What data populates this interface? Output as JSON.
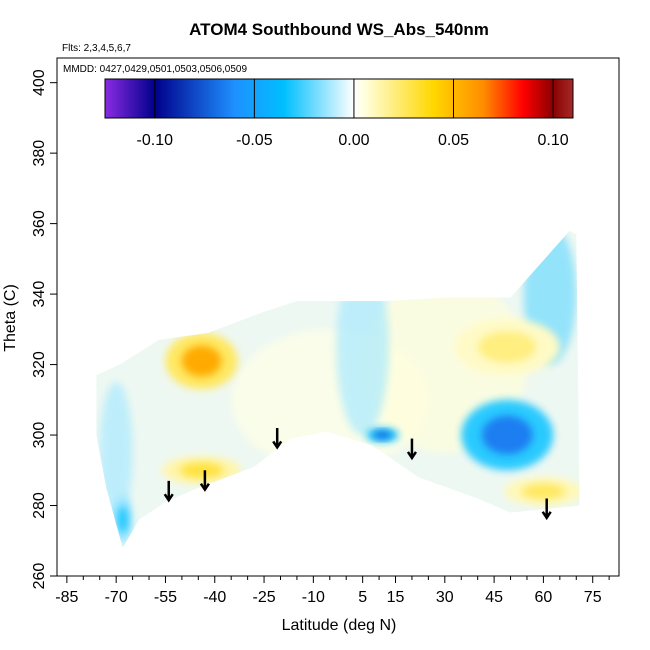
{
  "chart_data": {
    "type": "heatmap",
    "title": "ATOM4 Southbound WS_Abs_540nm",
    "subtitle_flights": "Flts: 2,3,4,5,6,7",
    "subtitle_dates": "MMDD: 0427,0429,0501,0503,0506,0509",
    "xlabel": "Latitude (deg N)",
    "ylabel": "Theta (C)",
    "xlim": [
      -88,
      83
    ],
    "ylim": [
      260,
      407
    ],
    "x_ticks": [
      -85,
      -70,
      -55,
      -40,
      -25,
      -10,
      5,
      15,
      30,
      45,
      60,
      75
    ],
    "x_tick_labels": [
      "-85",
      "-70",
      "-55",
      "-40",
      "-25",
      "-10",
      "5",
      "15",
      "30",
      "45",
      "60",
      "75"
    ],
    "x_minor_ticks": [
      -80,
      -75,
      -65,
      -60,
      -50,
      -45,
      -35,
      -30,
      -20,
      -15,
      -5,
      0,
      10,
      20,
      25,
      35,
      40,
      50,
      55,
      65,
      70,
      80
    ],
    "y_ticks": [
      260,
      280,
      300,
      320,
      340,
      360,
      380,
      400
    ],
    "y_tick_labels": [
      "260",
      "280",
      "300",
      "320",
      "340",
      "360",
      "380",
      "400"
    ],
    "colorbar": {
      "range": [
        -0.125,
        0.11
      ],
      "ticks": [
        -0.1,
        -0.05,
        0.0,
        0.05,
        0.1
      ],
      "tick_labels": [
        "-0.10",
        "-0.05",
        "0.00",
        "0.05",
        "0.10"
      ],
      "colors": [
        "#8a2be2",
        "#00008b",
        "#1e90ff",
        "#00bfff",
        "#ffffff",
        "#ffffe0",
        "#ffd700",
        "#ff8c00",
        "#ff0000",
        "#8b0000",
        "#a52a2a"
      ]
    },
    "domain_outline": [
      [
        -76,
        317
      ],
      [
        -69,
        320
      ],
      [
        -57,
        327
      ],
      [
        -42,
        329
      ],
      [
        -25,
        335
      ],
      [
        -15,
        338
      ],
      [
        -3,
        338
      ],
      [
        12,
        338
      ],
      [
        30,
        339
      ],
      [
        50,
        339
      ],
      [
        68,
        358
      ],
      [
        70,
        357
      ],
      [
        71,
        280
      ],
      [
        50,
        278
      ],
      [
        40,
        282
      ],
      [
        22,
        288
      ],
      [
        8,
        297
      ],
      [
        -6,
        301
      ],
      [
        -17,
        299
      ],
      [
        -28,
        291
      ],
      [
        -45,
        285
      ],
      [
        -55,
        281
      ],
      [
        -63,
        276
      ],
      [
        -68,
        268
      ],
      [
        -73,
        285
      ],
      [
        -76,
        300
      ]
    ],
    "anomalies": [
      {
        "label": "mid-latitude upper positive",
        "lat": -44,
        "theta": 321,
        "value": 0.055,
        "rx": 11,
        "ry": 8
      },
      {
        "label": "mid-latitude lower positive",
        "lat": -44,
        "theta": 290,
        "value": 0.03,
        "rx": 12,
        "ry": 4
      },
      {
        "label": "southern edge negative",
        "lat": -68,
        "theta": 276,
        "value": -0.03,
        "rx": 3,
        "ry": 7
      },
      {
        "label": "equatorial negative",
        "lat": 11,
        "theta": 300,
        "value": -0.07,
        "rx": 5,
        "ry": 2
      },
      {
        "label": "northern negative",
        "lat": 49,
        "theta": 300,
        "value": -0.065,
        "rx": 14,
        "ry": 10
      },
      {
        "label": "northern upper positive",
        "lat": 49,
        "theta": 325,
        "value": 0.02,
        "rx": 16,
        "ry": 8
      },
      {
        "label": "northern lower positive",
        "lat": 60,
        "theta": 284,
        "value": 0.025,
        "rx": 12,
        "ry": 4
      }
    ],
    "arrows_lat": [
      -54,
      -43,
      -21,
      20,
      61
    ]
  }
}
